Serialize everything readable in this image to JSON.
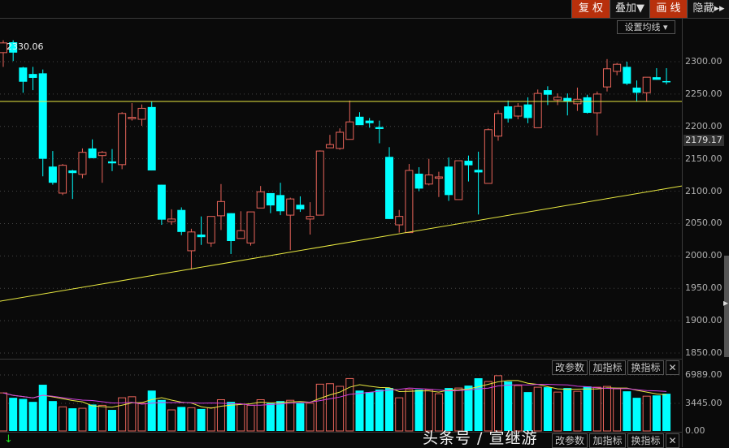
{
  "toolbar": {
    "fuquan": "复 权",
    "diejia": "叠加▼",
    "huaxian": "画 线",
    "yincang": "隐藏▸▸",
    "ma_setting": "设置均线 ▾"
  },
  "colors": {
    "up": "#e8645a",
    "down": "#00ffff",
    "hline": "#e8e840",
    "ma_short": "#e8e840",
    "ma_long": "#d040e0",
    "accent_button": "#b8300c"
  },
  "price_axis": {
    "ticks": [
      "2300.00",
      "2250.00",
      "2200.00",
      "2150.00",
      "2100.00",
      "2050.00",
      "2000.00",
      "1950.00",
      "1900.00",
      "1850.00"
    ],
    "current_price": "2179.17",
    "max_label": "2330.06"
  },
  "volume_axis": {
    "ticks": [
      "6989.00",
      "3445.00",
      "0.00"
    ]
  },
  "indicator_buttons": {
    "modify": "改参数",
    "add": "加指标",
    "switch": "换指标",
    "close": "✕"
  },
  "watermark": "头条号 / 宣继游",
  "chart_data": {
    "type": "candlestick",
    "ylim": [
      1850,
      2300
    ],
    "horizontal_line": 2238.6,
    "trend_line": {
      "start": 1930,
      "end": 2108
    },
    "ohlc": [
      [
        2314,
        2333,
        2292,
        2329
      ],
      [
        2330,
        2333,
        2301,
        2314
      ],
      [
        2291,
        2292,
        2252,
        2269
      ],
      [
        2281,
        2292,
        2256,
        2275
      ],
      [
        2282,
        2288,
        2123,
        2150
      ],
      [
        2138,
        2162,
        2110,
        2113
      ],
      [
        2097,
        2142,
        2094,
        2140
      ],
      [
        2132,
        2133,
        2088,
        2128
      ],
      [
        2126,
        2166,
        2120,
        2160
      ],
      [
        2166,
        2180,
        2151,
        2151
      ],
      [
        2155,
        2162,
        2113,
        2160
      ],
      [
        2146,
        2165,
        2131,
        2143
      ],
      [
        2141,
        2222,
        2134,
        2220
      ],
      [
        2212,
        2236,
        2209,
        2214
      ],
      [
        2211,
        2234,
        2201,
        2228
      ],
      [
        2230,
        2238,
        2132,
        2132
      ],
      [
        2110,
        2110,
        2048,
        2056
      ],
      [
        2053,
        2072,
        2048,
        2057
      ],
      [
        2071,
        2075,
        2032,
        2037
      ],
      [
        2008,
        2042,
        1979,
        2037
      ],
      [
        2033,
        2061,
        2017,
        2029
      ],
      [
        2020,
        2061,
        2014,
        2061
      ],
      [
        2062,
        2111,
        2040,
        2084
      ],
      [
        2066,
        2066,
        2003,
        2023
      ],
      [
        2027,
        2069,
        2027,
        2039
      ],
      [
        2020,
        2068,
        2016,
        2068
      ],
      [
        2074,
        2108,
        2074,
        2099
      ],
      [
        2097,
        2097,
        2066,
        2078
      ],
      [
        2094,
        2113,
        2063,
        2069
      ],
      [
        2063,
        2090,
        2009,
        2088
      ],
      [
        2079,
        2092,
        2068,
        2072
      ],
      [
        2057,
        2083,
        2033,
        2061
      ],
      [
        2063,
        2163,
        2063,
        2162
      ],
      [
        2167,
        2187,
        2167,
        2172
      ],
      [
        2166,
        2197,
        2164,
        2191
      ],
      [
        2180,
        2240,
        2180,
        2207
      ],
      [
        2215,
        2222,
        2203,
        2202
      ],
      [
        2209,
        2213,
        2198,
        2205
      ],
      [
        2199,
        2209,
        2174,
        2196
      ],
      [
        2153,
        2168,
        2057,
        2057
      ],
      [
        2048,
        2071,
        2036,
        2061
      ],
      [
        2036,
        2142,
        2036,
        2132
      ],
      [
        2127,
        2137,
        2100,
        2104
      ],
      [
        2111,
        2150,
        2109,
        2125
      ],
      [
        2120,
        2130,
        2091,
        2122
      ],
      [
        2138,
        2152,
        2085,
        2094
      ],
      [
        2087,
        2147,
        2087,
        2147
      ],
      [
        2147,
        2155,
        2115,
        2140
      ],
      [
        2133,
        2161,
        2064,
        2129
      ],
      [
        2112,
        2197,
        2112,
        2195
      ],
      [
        2185,
        2225,
        2178,
        2220
      ],
      [
        2231,
        2240,
        2206,
        2212
      ],
      [
        2216,
        2236,
        2211,
        2231
      ],
      [
        2234,
        2245,
        2205,
        2213
      ],
      [
        2198,
        2257,
        2198,
        2251
      ],
      [
        2256,
        2262,
        2233,
        2249
      ],
      [
        2241,
        2251,
        2233,
        2245
      ],
      [
        2244,
        2251,
        2217,
        2239
      ],
      [
        2235,
        2260,
        2224,
        2242
      ],
      [
        2245,
        2249,
        2220,
        2221
      ],
      [
        2221,
        2254,
        2186,
        2250
      ],
      [
        2261,
        2304,
        2254,
        2289
      ],
      [
        2285,
        2298,
        2279,
        2296
      ],
      [
        2292,
        2300,
        2264,
        2266
      ],
      [
        2260,
        2271,
        2239,
        2252
      ],
      [
        2252,
        2276,
        2239,
        2276
      ],
      [
        2276,
        2290,
        2272,
        2272
      ],
      [
        2270,
        2290,
        2265,
        2269
      ]
    ],
    "volume_ylim": [
      0,
      6989
    ],
    "volume": [
      4750,
      4140,
      4000,
      3630,
      5770,
      3730,
      3010,
      2830,
      2830,
      3300,
      3200,
      2630,
      4140,
      4270,
      3460,
      5040,
      3870,
      2630,
      3000,
      2900,
      2750,
      2900,
      3900,
      3630,
      3360,
      3200,
      3900,
      3460,
      3730,
      3830,
      3460,
      3460,
      5840,
      5900,
      5570,
      6540,
      5040,
      4850,
      5160,
      5360,
      4140,
      5160,
      5160,
      5160,
      4650,
      5360,
      5360,
      5660,
      6580,
      6170,
      6900,
      6170,
      5660,
      4850,
      5460,
      5460,
      4850,
      5360,
      4950,
      5560,
      5460,
      5560,
      5260,
      4950,
      4140,
      4340,
      4440,
      4650
    ]
  }
}
